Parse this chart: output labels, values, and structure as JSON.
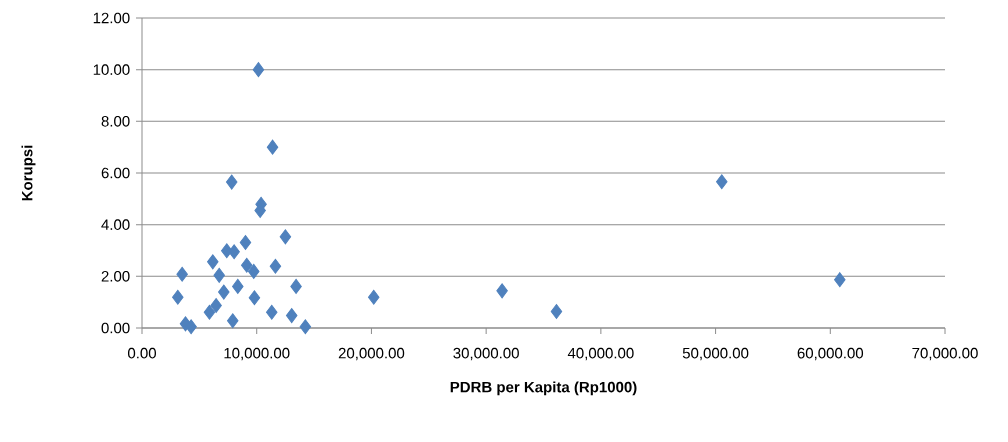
{
  "chart_data": {
    "type": "scatter",
    "xlabel": "PDRB per Kapita (Rp1000)",
    "ylabel": "Korupsi",
    "xlim": [
      0,
      70000
    ],
    "ylim": [
      0,
      12
    ],
    "xticks": [
      {
        "value": 0,
        "label": "0.00"
      },
      {
        "value": 10000,
        "label": "10,000.00"
      },
      {
        "value": 20000,
        "label": "20,000.00"
      },
      {
        "value": 30000,
        "label": "30,000.00"
      },
      {
        "value": 40000,
        "label": "40,000.00"
      },
      {
        "value": 50000,
        "label": "50,000.00"
      },
      {
        "value": 60000,
        "label": "60,000.00"
      },
      {
        "value": 70000,
        "label": "70,000.00"
      }
    ],
    "yticks": [
      {
        "value": 0,
        "label": "0.00"
      },
      {
        "value": 2,
        "label": "2.00"
      },
      {
        "value": 4,
        "label": "4.00"
      },
      {
        "value": 6,
        "label": "6.00"
      },
      {
        "value": 8,
        "label": "8.00"
      },
      {
        "value": 10,
        "label": "10.00"
      },
      {
        "value": 12,
        "label": "12.00"
      }
    ],
    "grid": "y",
    "marker": "diamond",
    "color": "#4f81bd",
    "x": [
      10150,
      11380,
      7820,
      10380,
      10300,
      12500,
      9020,
      8030,
      7390,
      6170,
      3500,
      6730,
      9130,
      9740,
      11630,
      13430,
      8350,
      7130,
      3120,
      9800,
      6460,
      5880,
      11310,
      13050,
      7910,
      3790,
      4280,
      14240,
      20200,
      31390,
      36130,
      50540,
      60830
    ],
    "values": [
      10.0,
      7.0,
      5.65,
      4.79,
      4.55,
      3.53,
      3.31,
      2.95,
      2.99,
      2.56,
      2.08,
      2.04,
      2.43,
      2.19,
      2.39,
      1.61,
      1.61,
      1.39,
      1.19,
      1.17,
      0.87,
      0.61,
      0.61,
      0.48,
      0.28,
      0.16,
      0.05,
      0.05,
      1.19,
      1.44,
      0.64,
      5.66,
      1.87
    ]
  }
}
